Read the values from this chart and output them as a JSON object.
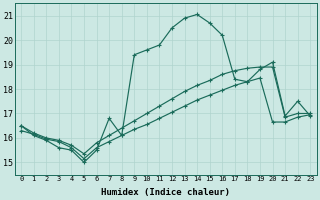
{
  "xlabel": "Humidex (Indice chaleur)",
  "xlim": [
    -0.5,
    23.5
  ],
  "ylim": [
    14.5,
    21.5
  ],
  "xticks": [
    0,
    1,
    2,
    3,
    4,
    5,
    6,
    7,
    8,
    9,
    10,
    11,
    12,
    13,
    14,
    15,
    16,
    17,
    18,
    19,
    20,
    21,
    22,
    23
  ],
  "yticks": [
    15,
    16,
    17,
    18,
    19,
    20,
    21
  ],
  "bg_color": "#cce8e3",
  "grid_color": "#b0d4ce",
  "line_color": "#1a6b5a",
  "line1_y": [
    16.5,
    16.1,
    15.9,
    15.6,
    15.5,
    15.0,
    15.5,
    16.8,
    16.1,
    19.4,
    19.6,
    19.8,
    20.5,
    20.9,
    21.05,
    20.7,
    20.2,
    18.4,
    18.3,
    18.8,
    19.1,
    16.9,
    17.5,
    16.9
  ],
  "line2_y": [
    16.5,
    16.2,
    16.0,
    15.9,
    15.7,
    15.35,
    15.8,
    16.1,
    16.4,
    16.7,
    17.0,
    17.3,
    17.6,
    17.9,
    18.15,
    18.35,
    18.6,
    18.75,
    18.85,
    18.9,
    18.9,
    16.85,
    17.0,
    17.0
  ],
  "line3_y": [
    16.3,
    16.15,
    15.95,
    15.85,
    15.6,
    15.15,
    15.6,
    15.85,
    16.1,
    16.35,
    16.55,
    16.8,
    17.05,
    17.3,
    17.55,
    17.75,
    17.95,
    18.15,
    18.3,
    18.45,
    16.65,
    16.65,
    16.85,
    16.95
  ]
}
